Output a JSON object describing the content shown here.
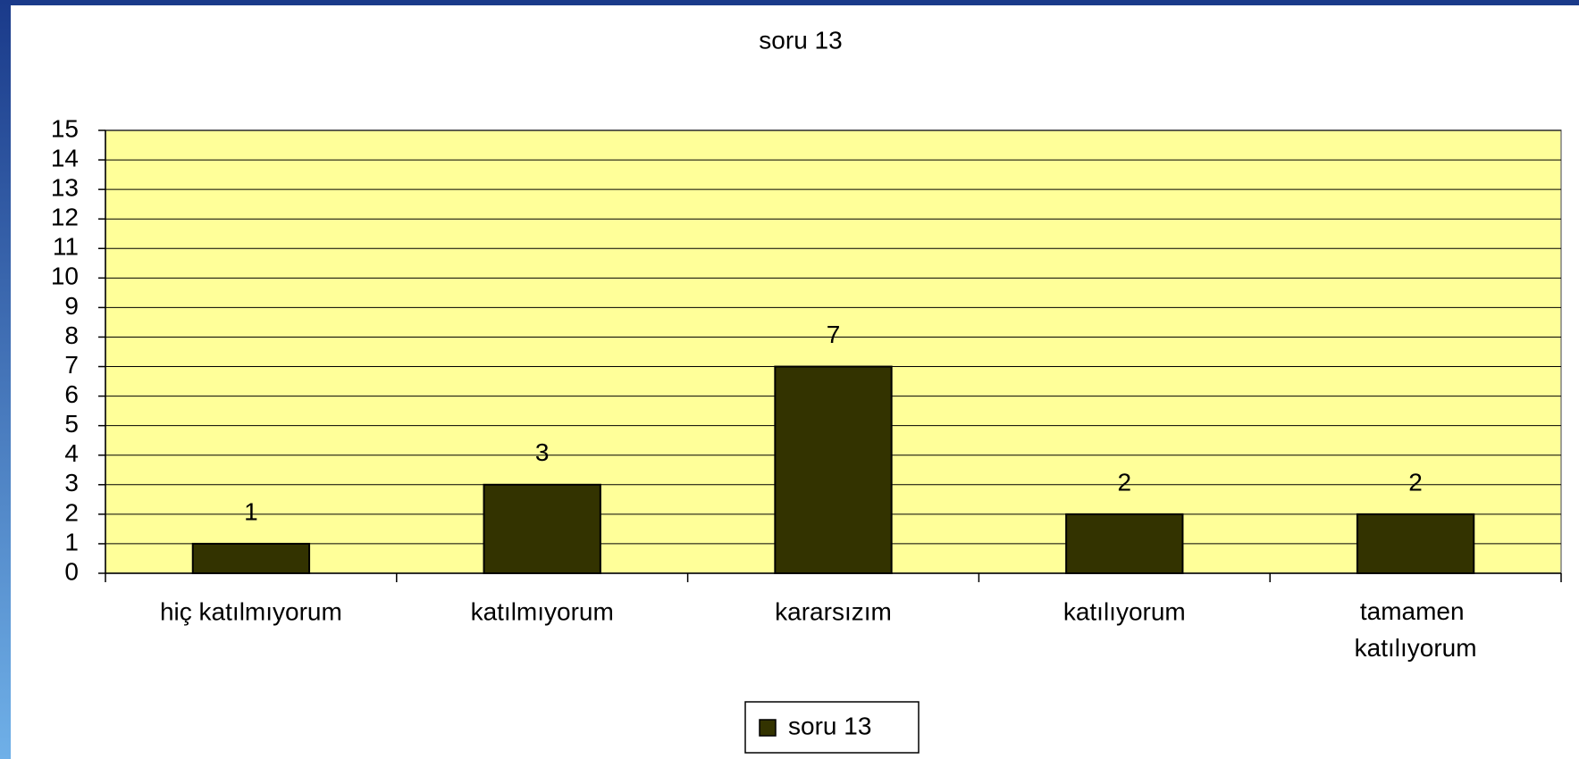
{
  "chart_data": {
    "type": "bar",
    "title": "soru 13",
    "categories": [
      "hiç katılmıyorum",
      "katılmıyorum",
      "kararsızım",
      "katılıyorum",
      "tamamen katılıyorum"
    ],
    "series": [
      {
        "name": "soru 13",
        "color": "#333300",
        "values": [
          1,
          3,
          7,
          2,
          2
        ]
      }
    ],
    "ylim": [
      0,
      15
    ],
    "yticks": [
      0,
      1,
      2,
      3,
      4,
      5,
      6,
      7,
      8,
      9,
      10,
      11,
      12,
      13,
      14,
      15
    ],
    "grid": true,
    "legend": "bottom"
  }
}
